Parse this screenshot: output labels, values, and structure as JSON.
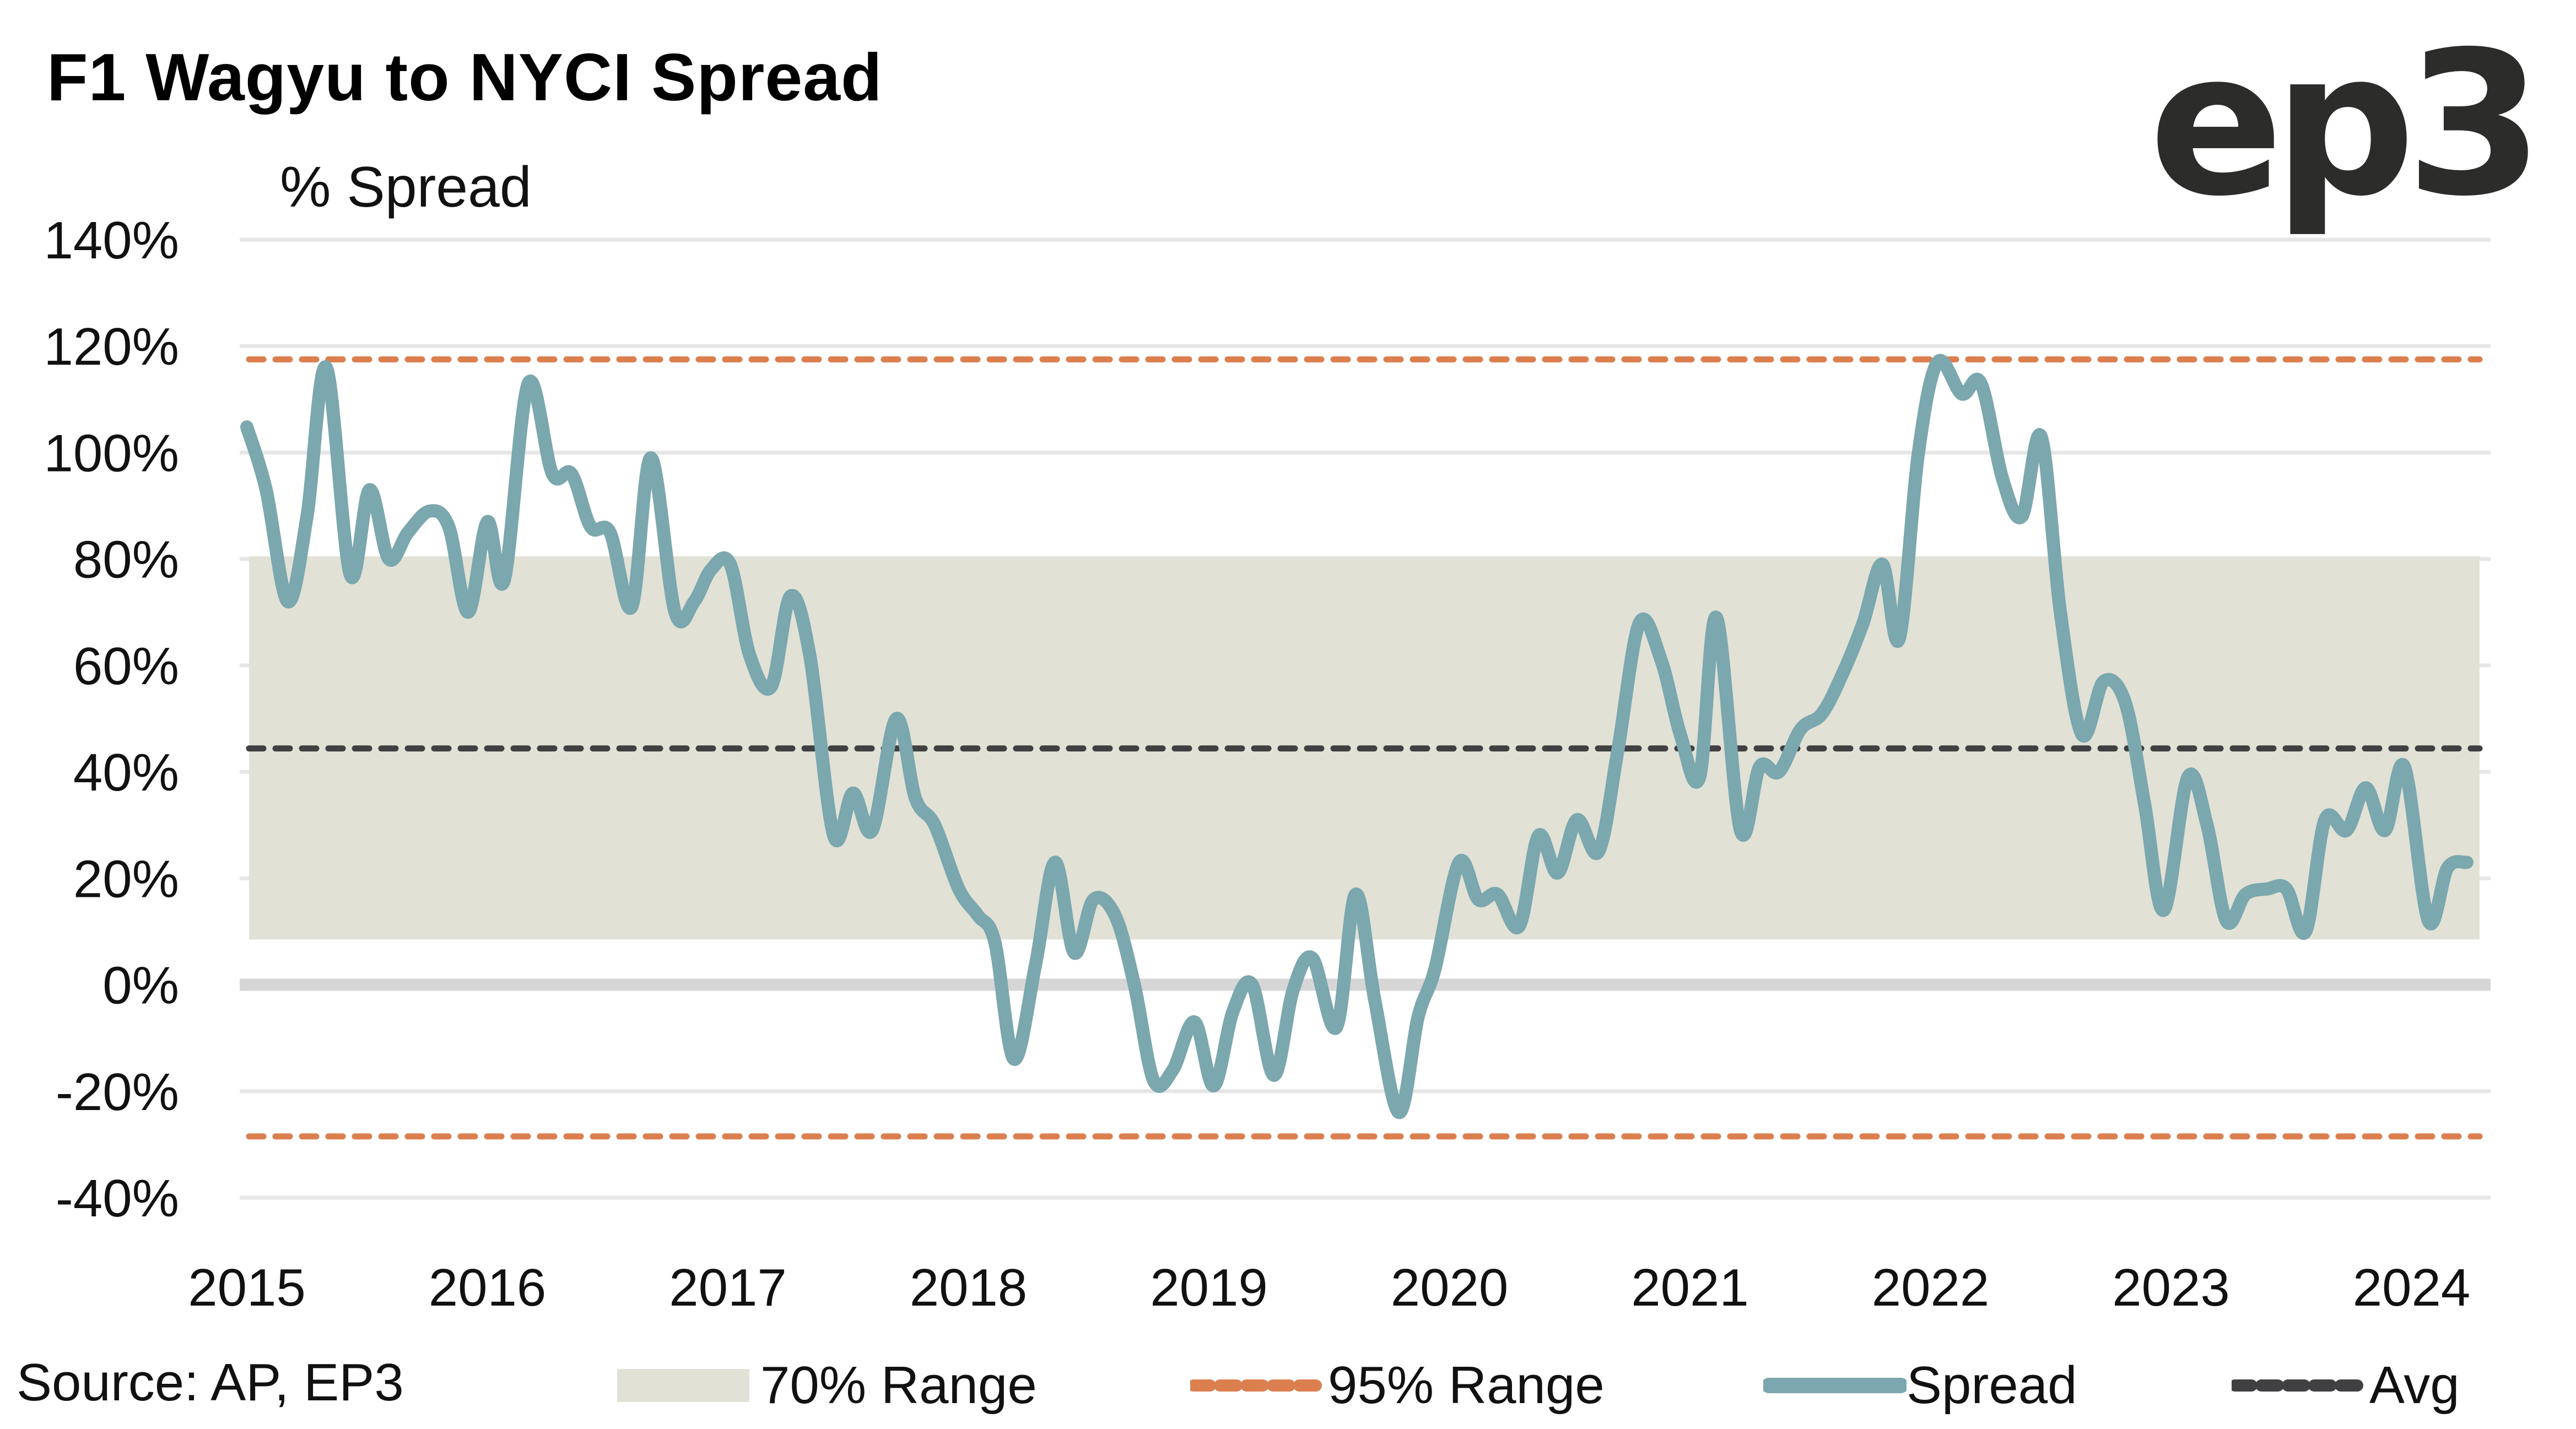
{
  "chart_data": {
    "type": "line",
    "title": "F1 Wagyu to NYCI Spread",
    "ylabel": "% Spread",
    "xlabel": "",
    "ylim": [
      -40,
      140
    ],
    "xlim": [
      2015,
      2024.25
    ],
    "yticks": [
      140,
      120,
      100,
      80,
      60,
      40,
      20,
      0,
      -20,
      -40
    ],
    "ytick_labels": [
      "140%",
      "120%",
      "100%",
      "80%",
      "60%",
      "40%",
      "20%",
      "0%",
      "-20%",
      "-40%"
    ],
    "xticks": [
      2015,
      2016,
      2017,
      2018,
      2019,
      2020,
      2021,
      2022,
      2023,
      2024
    ],
    "xtick_labels": [
      "2015",
      "2016",
      "2017",
      "2018",
      "2019",
      "2020",
      "2021",
      "2022",
      "2023",
      "2024"
    ],
    "grid": true,
    "legend_position": "bottom",
    "source": "Source: AP, EP3",
    "bands": {
      "range_70": {
        "name": "70% Range",
        "low": 8.5,
        "high": 80.5,
        "color": "#e1e1d6"
      },
      "range_95": {
        "name": "95% Range",
        "low": -28.5,
        "high": 117.5,
        "color": "#db7f4f"
      },
      "avg": {
        "name": "Avg",
        "value": 44.4,
        "color": "#404042"
      }
    },
    "series": [
      {
        "name": "Spread",
        "color": "#7ba7ae",
        "points": [
          [
            2015.0,
            104.8
          ],
          [
            2015.08,
            93
          ],
          [
            2015.17,
            72
          ],
          [
            2015.25,
            88
          ],
          [
            2015.33,
            116
          ],
          [
            2015.43,
            77
          ],
          [
            2015.51,
            93
          ],
          [
            2015.59,
            80
          ],
          [
            2015.67,
            85
          ],
          [
            2015.76,
            89
          ],
          [
            2015.84,
            86
          ],
          [
            2015.92,
            70
          ],
          [
            2016.0,
            87
          ],
          [
            2016.07,
            76
          ],
          [
            2016.17,
            113
          ],
          [
            2016.27,
            96
          ],
          [
            2016.35,
            96
          ],
          [
            2016.43,
            86
          ],
          [
            2016.51,
            85
          ],
          [
            2016.6,
            71
          ],
          [
            2016.68,
            99
          ],
          [
            2016.78,
            70
          ],
          [
            2016.86,
            72
          ],
          [
            2016.93,
            78
          ],
          [
            2017.01,
            79
          ],
          [
            2017.09,
            62
          ],
          [
            2017.18,
            56
          ],
          [
            2017.26,
            73
          ],
          [
            2017.34,
            62
          ],
          [
            2017.44,
            28
          ],
          [
            2017.52,
            36
          ],
          [
            2017.6,
            29
          ],
          [
            2017.7,
            50
          ],
          [
            2017.78,
            35
          ],
          [
            2017.86,
            30
          ],
          [
            2017.96,
            18
          ],
          [
            2018.04,
            13
          ],
          [
            2018.11,
            8
          ],
          [
            2018.19,
            -14
          ],
          [
            2018.28,
            4
          ],
          [
            2018.36,
            23
          ],
          [
            2018.44,
            6
          ],
          [
            2018.52,
            16
          ],
          [
            2018.61,
            13
          ],
          [
            2018.69,
            0
          ],
          [
            2018.77,
            -18
          ],
          [
            2018.85,
            -16
          ],
          [
            2018.94,
            -7
          ],
          [
            2019.02,
            -19
          ],
          [
            2019.1,
            -5
          ],
          [
            2019.18,
            0
          ],
          [
            2019.27,
            -17
          ],
          [
            2019.35,
            -1
          ],
          [
            2019.43,
            5
          ],
          [
            2019.53,
            -8
          ],
          [
            2019.61,
            17
          ],
          [
            2019.69,
            -3
          ],
          [
            2019.79,
            -24
          ],
          [
            2019.87,
            -6
          ],
          [
            2019.94,
            3
          ],
          [
            2020.04,
            23
          ],
          [
            2020.12,
            16
          ],
          [
            2020.2,
            17
          ],
          [
            2020.29,
            11
          ],
          [
            2020.37,
            28
          ],
          [
            2020.45,
            21
          ],
          [
            2020.53,
            31
          ],
          [
            2020.62,
            25
          ],
          [
            2020.7,
            44
          ],
          [
            2020.79,
            68
          ],
          [
            2020.88,
            61
          ],
          [
            2020.96,
            47
          ],
          [
            2021.04,
            39
          ],
          [
            2021.11,
            69
          ],
          [
            2021.21,
            29
          ],
          [
            2021.29,
            41
          ],
          [
            2021.37,
            40
          ],
          [
            2021.46,
            48
          ],
          [
            2021.55,
            51
          ],
          [
            2021.64,
            59
          ],
          [
            2021.72,
            68
          ],
          [
            2021.8,
            79
          ],
          [
            2021.87,
            65
          ],
          [
            2021.95,
            100
          ],
          [
            2022.03,
            117
          ],
          [
            2022.13,
            111
          ],
          [
            2022.21,
            113
          ],
          [
            2022.3,
            95
          ],
          [
            2022.38,
            88
          ],
          [
            2022.46,
            103
          ],
          [
            2022.54,
            70
          ],
          [
            2022.63,
            47
          ],
          [
            2022.72,
            57
          ],
          [
            2022.81,
            53
          ],
          [
            2022.89,
            34
          ],
          [
            2022.97,
            14
          ],
          [
            2023.07,
            39
          ],
          [
            2023.15,
            30
          ],
          [
            2023.23,
            12
          ],
          [
            2023.31,
            17
          ],
          [
            2023.4,
            18
          ],
          [
            2023.48,
            18
          ],
          [
            2023.56,
            10
          ],
          [
            2023.64,
            31
          ],
          [
            2023.73,
            29
          ],
          [
            2023.81,
            37
          ],
          [
            2023.89,
            29
          ],
          [
            2023.97,
            41
          ],
          [
            2024.07,
            12
          ],
          [
            2024.15,
            22
          ],
          [
            2024.23,
            23
          ]
        ]
      }
    ]
  },
  "header": {
    "title": "F1 Wagyu to NYCI Spread",
    "logo_text": "ep3"
  },
  "legend": {
    "source": "Source: AP, EP3",
    "items": [
      {
        "label": "70% Range",
        "kind": "box",
        "color": "#e1e1d6"
      },
      {
        "label": "95% Range",
        "kind": "dashed",
        "color": "#db7f4f"
      },
      {
        "label": "Spread",
        "kind": "solid",
        "color": "#7ba7ae"
      },
      {
        "label": "Avg",
        "kind": "dashed",
        "color": "#404042"
      }
    ]
  }
}
